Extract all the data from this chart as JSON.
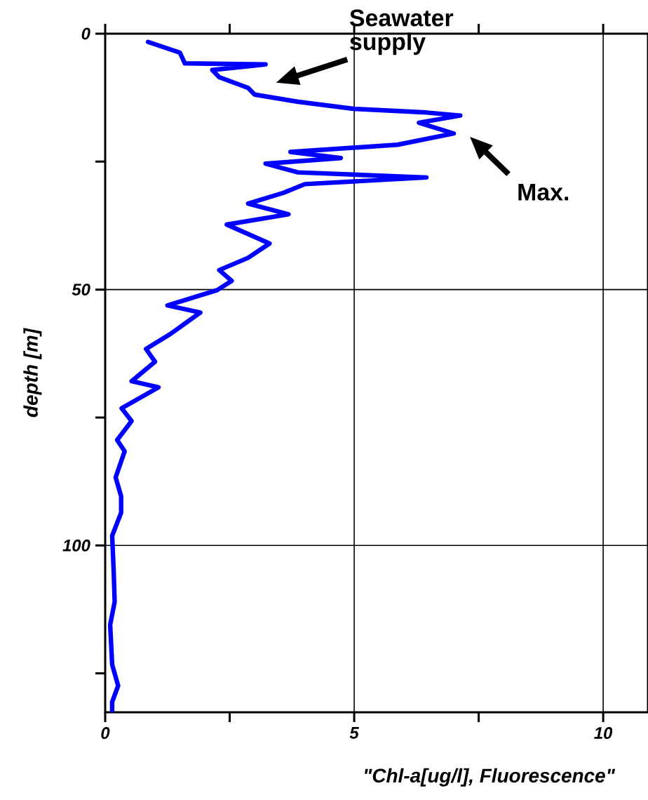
{
  "chart_data": {
    "type": "line",
    "xlabel": "\"Chl-a[ug/l], Fluorescence\"",
    "ylabel": "depth [m]",
    "xlim": [
      0,
      10.9
    ],
    "ylim": [
      132.6,
      0
    ],
    "xticks": [
      0,
      {
        "value": 2.5,
        "label": null
      },
      5,
      {
        "value": 7.5,
        "label": null
      },
      10
    ],
    "yticks": [
      0,
      {
        "value": 25,
        "label": null
      },
      50,
      {
        "value": 75,
        "label": null
      },
      100,
      {
        "value": 125,
        "label": null
      }
    ],
    "grid": true,
    "annotations": [
      "Seawater supply",
      "Max."
    ],
    "series": [
      {
        "color": "#0000ff",
        "line_style": "solid",
        "marker": "none",
        "x": [
          0.86,
          1.5,
          1.6,
          3.22,
          2.15,
          2.29,
          2.87,
          3.0,
          3.87,
          5.01,
          6.45,
          7.13,
          6.3,
          7.0,
          5.87,
          3.72,
          4.73,
          3.22,
          3.87,
          6.45,
          4.01,
          3.58,
          2.87,
          3.68,
          2.44,
          3.3,
          2.87,
          2.29,
          2.54,
          2.25,
          1.25,
          1.91,
          1.29,
          0.82,
          1.0,
          0.53,
          1.07,
          0.33,
          0.53,
          0.24,
          0.39,
          0.21,
          0.32,
          0.32,
          0.14,
          0.17,
          0.19,
          0.1,
          0.14,
          0.26,
          0.14,
          0.14
        ],
        "values": [
          1.6,
          3.7,
          5.8,
          6.0,
          7.1,
          8.5,
          10.6,
          11.9,
          13.3,
          14.7,
          15.4,
          16.0,
          17.4,
          19.5,
          21.7,
          23.1,
          24.3,
          25.4,
          27.1,
          28.1,
          29.4,
          31.1,
          33.2,
          35.3,
          37.3,
          41.0,
          43.8,
          46.2,
          48.3,
          50.1,
          53.1,
          54.5,
          58.8,
          61.6,
          64.1,
          67.9,
          69.1,
          73.2,
          75.7,
          79.4,
          81.6,
          86.7,
          90.4,
          93.6,
          98.1,
          104.9,
          111.0,
          115.5,
          123.3,
          127.4,
          130.6,
          132.2
        ]
      }
    ]
  }
}
